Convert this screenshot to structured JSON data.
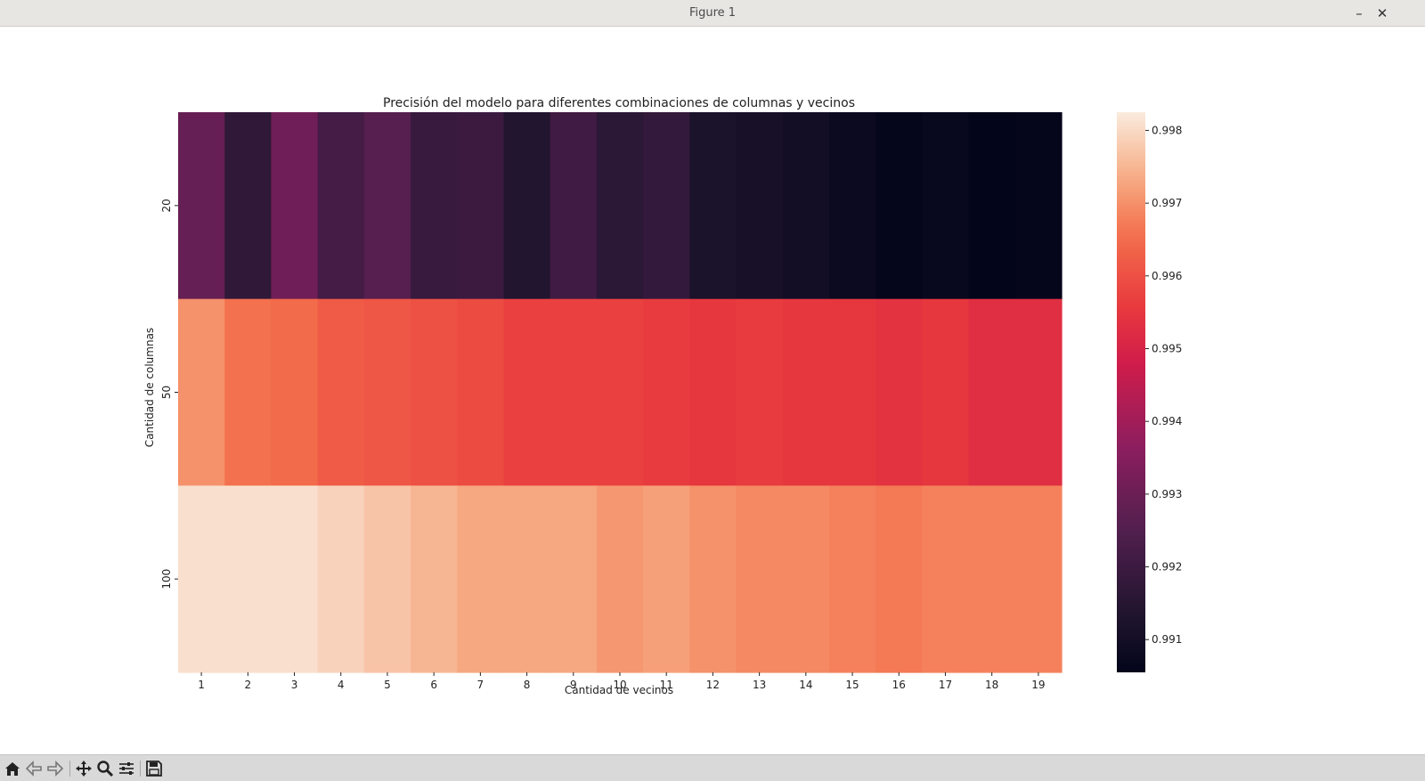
{
  "window": {
    "title": "Figure 1",
    "minimize_label": "–",
    "close_label": "✕"
  },
  "toolbar": {
    "buttons": [
      "home-icon",
      "back-icon",
      "forward-icon",
      "pan-icon",
      "zoom-icon",
      "configure-subplots-icon",
      "save-icon"
    ]
  },
  "chart_data": {
    "type": "heatmap",
    "title": "Precisión del modelo para diferentes combinaciones de columnas y vecinos",
    "xlabel": "Cantidad de vecinos",
    "ylabel": "Cantidad de columnas",
    "x": [
      "1",
      "2",
      "3",
      "4",
      "5",
      "6",
      "7",
      "8",
      "9",
      "10",
      "11",
      "12",
      "13",
      "14",
      "15",
      "16",
      "17",
      "18",
      "19"
    ],
    "y": [
      "20",
      "50",
      "100"
    ],
    "values": [
      [
        0.9929,
        0.9917,
        0.9931,
        0.9922,
        0.9926,
        0.9919,
        0.992,
        0.9914,
        0.9921,
        0.9916,
        0.9918,
        0.9912,
        0.9911,
        0.991,
        0.9908,
        0.9906,
        0.9907,
        0.9905,
        0.9906
      ],
      [
        0.997,
        0.9966,
        0.9965,
        0.9962,
        0.9961,
        0.996,
        0.9959,
        0.9957,
        0.9957,
        0.9957,
        0.9956,
        0.9955,
        0.9956,
        0.9955,
        0.9955,
        0.9954,
        0.9955,
        0.9953,
        0.9953
      ],
      [
        0.9981,
        0.9981,
        0.9981,
        0.9979,
        0.9977,
        0.9975,
        0.9973,
        0.9973,
        0.9973,
        0.9971,
        0.9972,
        0.997,
        0.9969,
        0.9969,
        0.9968,
        0.9967,
        0.9968,
        0.9968,
        0.9968
      ]
    ],
    "colorbar": {
      "vmin": 0.99055,
      "vmax": 0.99825,
      "ticks": [
        0.998,
        0.997,
        0.996,
        0.995,
        0.994,
        0.993,
        0.992,
        0.991
      ],
      "tick_labels": [
        "0.998",
        "0.997",
        "0.996",
        "0.995",
        "0.994",
        "0.993",
        "0.992",
        "0.991"
      ],
      "colormap": "rocket"
    },
    "grid": false,
    "legend": "colorbar-right"
  }
}
